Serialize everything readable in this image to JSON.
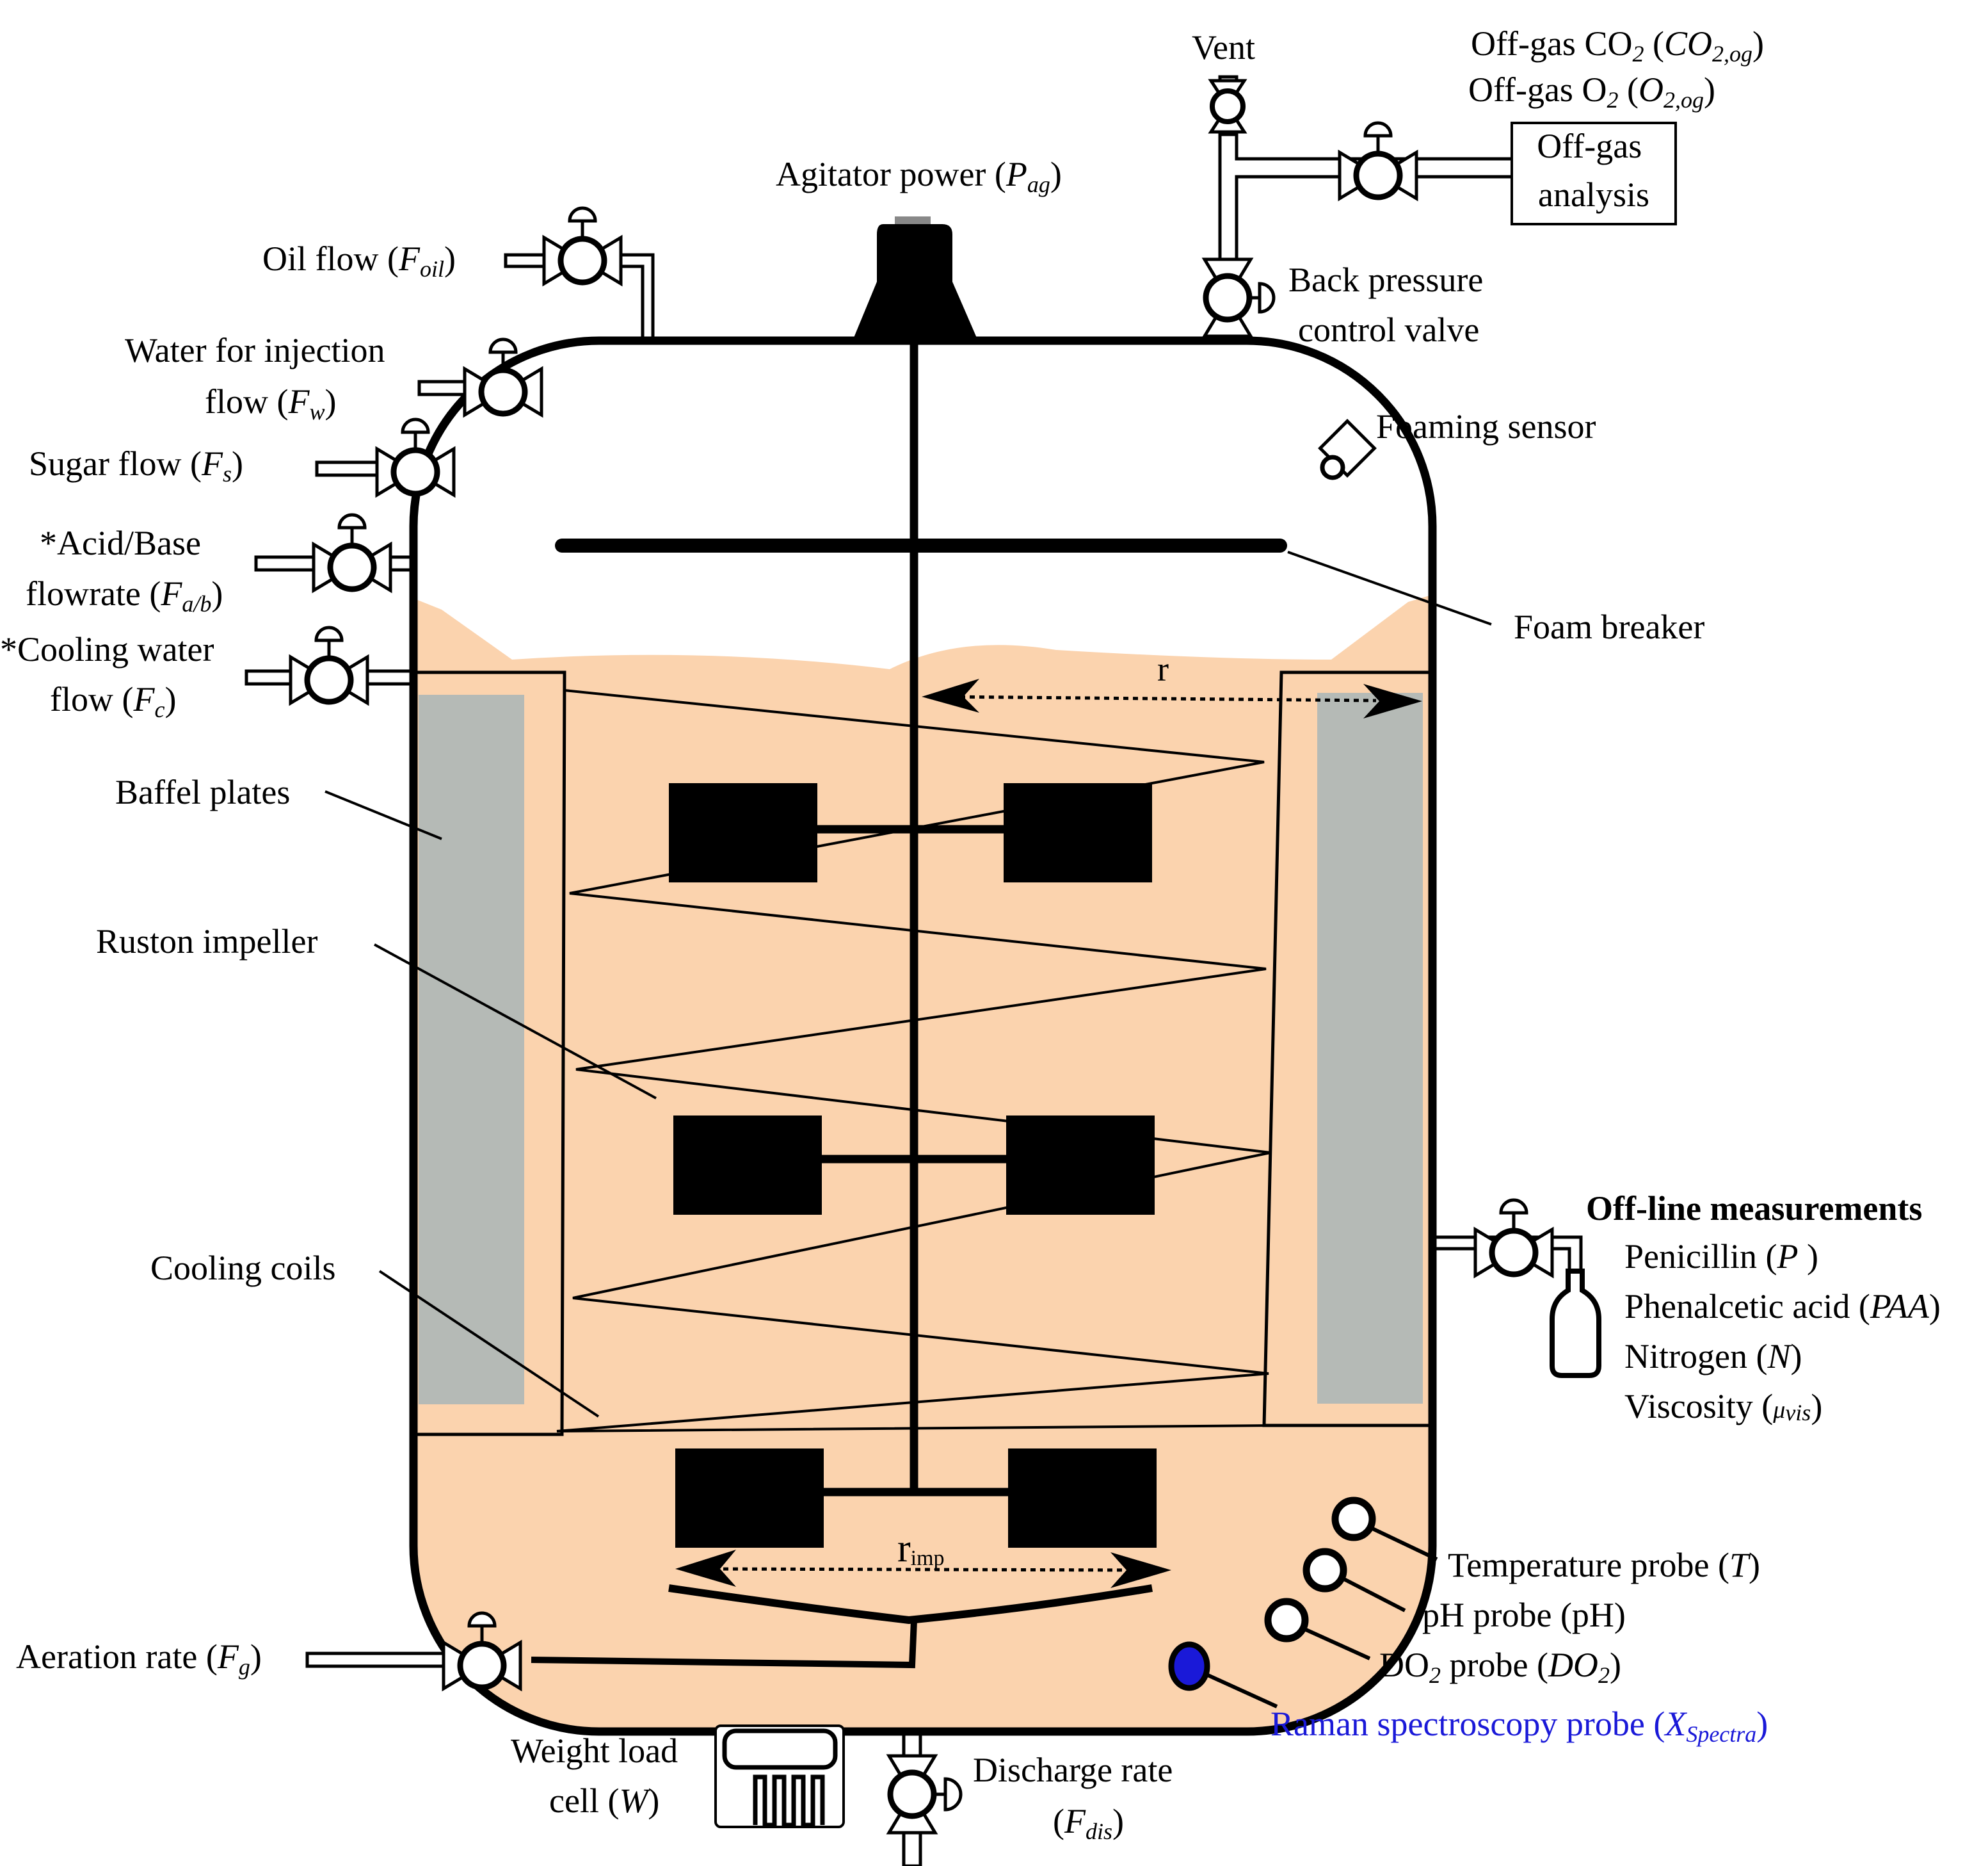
{
  "colors": {
    "broth": "#FBD3AE",
    "baffle": "#B5BAB6",
    "outline": "#000000",
    "raman": "#1A19D8"
  },
  "labels": {
    "vent": "Vent",
    "offgas_co2": "Off-gas CO",
    "offgas_co2_sub": "2",
    "offgas_co2_sym": "CO",
    "offgas_co2_sym_sub": "2,og",
    "offgas_o2": "Off-gas O",
    "offgas_o2_sub": "2",
    "offgas_o2_sym": "O",
    "offgas_o2_sym_sub": "2,og",
    "offgas_analysis_1": "Off-gas",
    "offgas_analysis_2": "analysis",
    "agitator": "Agitator power (",
    "agitator_sym": "P",
    "agitator_sub": "ag",
    "back_pressure_1": "Back pressure",
    "back_pressure_2": "control valve",
    "oil_flow": "Oil flow (",
    "oil_sym": "F",
    "oil_sub": "oil",
    "water_1": "Water for injection",
    "water_2": "flow (",
    "water_sym": "F",
    "water_sub": "w",
    "sugar": "Sugar flow (",
    "sugar_sym": "F",
    "sugar_sub": "s",
    "acid_1": "*Acid/Base",
    "acid_2": "flowrate (",
    "acid_sym": "F",
    "acid_sub": "a/b",
    "cooling_1": "*Cooling water",
    "cooling_2": "flow (",
    "cooling_sym": "F",
    "cooling_sub": "c",
    "foaming_sensor": "Foaming sensor",
    "foam_breaker": "Foam breaker",
    "radius": "r",
    "baffel_plates": "Baffel plates",
    "ruston_impeller": "Ruston impeller",
    "cooling_coils": "Cooling coils",
    "offline_title": "Off-line measurements",
    "penicillin": "Penicillin (",
    "penicillin_sym": "P",
    "paa": "Phenalcetic acid (",
    "paa_sym": "PAA",
    "nitrogen": "Nitrogen (",
    "nitrogen_sym": "N",
    "viscosity": "Viscosity (",
    "viscosity_sym": "μ",
    "viscosity_sub": "vis",
    "r_imp": "r",
    "r_imp_sub": "imp",
    "temperature": "Temperature probe (",
    "temperature_sym": "T",
    "ph": "pH probe (pH)",
    "do2": "DO",
    "do2_sub": "2",
    "do2_rest": " probe (",
    "do2_sym": "DO",
    "do2_sym_sub": "2",
    "raman": "Raman spectroscopy probe (",
    "raman_sym": "X",
    "raman_sub": "Spectra",
    "aeration": "Aeration rate (",
    "aeration_sym": "F",
    "aeration_sub": "g",
    "weight_1": "Weight load",
    "weight_2": "cell (",
    "weight_sym": "W",
    "discharge_1": "Discharge rate",
    "discharge_sym": "F",
    "discharge_sub": "dis"
  }
}
